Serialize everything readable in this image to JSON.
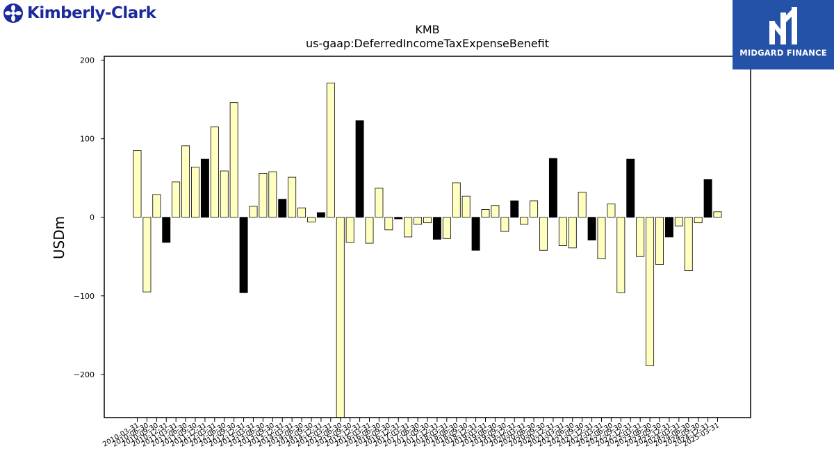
{
  "brand": {
    "name": "Kimberly-Clark",
    "color": "#1c2b9c"
  },
  "watermark": {
    "name": "MIDGARD FINANCE",
    "bg": "#2452a8"
  },
  "chart_data": {
    "type": "bar",
    "title": "KMB",
    "subtitle": "us-gaap:DeferredIncomeTaxExpenseBenefit",
    "xlabel": "",
    "ylabel": "USDm",
    "ylim": [
      -255,
      205
    ],
    "yticks": [
      -200,
      -100,
      0,
      100,
      200
    ],
    "ytick_labels": [
      "−200",
      "−100",
      "0",
      "100",
      "200"
    ],
    "grid": false,
    "colors": {
      "default": "#ffffc0",
      "highlight": "#000000",
      "edge": "#000000"
    },
    "categories": [
      "2010-03-31",
      "2010-06-30",
      "2010-09-30",
      "2010-12-31",
      "2011-03-31",
      "2011-06-30",
      "2011-09-30",
      "2011-12-31",
      "2012-03-31",
      "2012-06-30",
      "2012-09-30",
      "2012-12-31",
      "2013-03-31",
      "2013-06-30",
      "2013-09-30",
      "2013-12-31",
      "2014-03-31",
      "2014-06-30",
      "2014-09-30",
      "2014-12-31",
      "2015-03-31",
      "2015-06-30",
      "2015-09-30",
      "2015-12-31",
      "2016-03-31",
      "2016-06-30",
      "2016-09-30",
      "2016-12-31",
      "2017-03-31",
      "2017-06-30",
      "2017-09-30",
      "2017-12-31",
      "2018-03-31",
      "2018-06-30",
      "2018-09-30",
      "2018-12-31",
      "2019-03-31",
      "2019-06-30",
      "2019-09-30",
      "2019-12-31",
      "2020-03-31",
      "2020-06-30",
      "2020-09-30",
      "2020-12-31",
      "2021-03-31",
      "2021-06-30",
      "2021-09-30",
      "2021-12-31",
      "2022-03-31",
      "2022-06-30",
      "2022-09-30",
      "2022-12-31",
      "2023-03-31",
      "2023-06-30",
      "2023-09-30",
      "2023-12-31",
      "2024-03-31",
      "2024-06-30",
      "2024-09-30",
      "2024-12-31",
      "2025-03-31"
    ],
    "values": [
      85,
      -95,
      29,
      -32,
      45,
      91,
      64,
      74,
      115,
      59,
      146,
      -96,
      14,
      56,
      58,
      23,
      51,
      12,
      -6,
      6,
      171,
      -258,
      -32,
      123,
      -33,
      37,
      -16,
      -2,
      -25,
      -9,
      -7,
      -28,
      -27,
      44,
      27,
      -42,
      10,
      15,
      -18,
      21,
      -9,
      21,
      -42,
      75,
      -36,
      -39,
      32,
      -29,
      -53,
      17,
      -96,
      74,
      -50,
      -189,
      -60,
      -25,
      -11,
      -68,
      -7,
      48,
      7
    ],
    "highlighted": [
      false,
      false,
      false,
      true,
      false,
      false,
      false,
      true,
      false,
      false,
      false,
      true,
      false,
      false,
      false,
      true,
      false,
      false,
      false,
      true,
      false,
      false,
      false,
      true,
      false,
      false,
      false,
      true,
      false,
      false,
      false,
      true,
      false,
      false,
      false,
      true,
      false,
      false,
      false,
      true,
      false,
      false,
      false,
      true,
      false,
      false,
      false,
      true,
      false,
      false,
      false,
      true,
      false,
      false,
      false,
      true,
      false,
      false,
      false,
      true,
      false
    ]
  }
}
